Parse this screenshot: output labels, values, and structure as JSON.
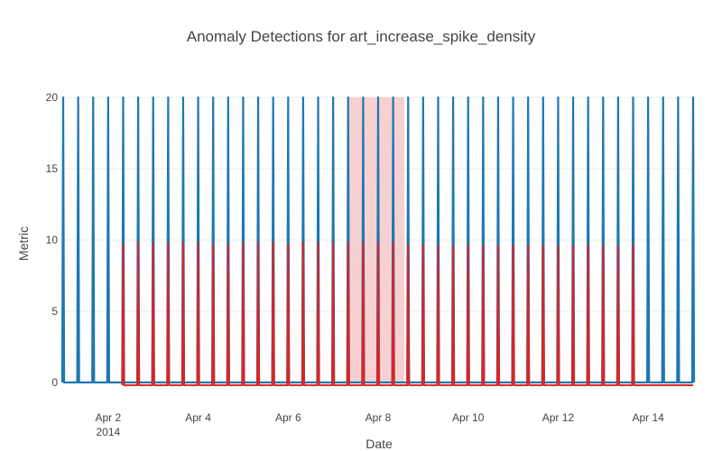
{
  "chart_data": {
    "type": "line",
    "title": "Anomaly Detections for art_increase_spike_density",
    "xlabel": "Date",
    "ylabel": "Metric",
    "ylim": [
      0,
      20
    ],
    "xlim": [
      "2014-04-01T00:00",
      "2014-04-15T00:00"
    ],
    "grid": true,
    "legend": "none",
    "x_ticks": [
      {
        "date": "2014-04-02",
        "label": "Apr 2",
        "sublabel": "2014"
      },
      {
        "date": "2014-04-04",
        "label": "Apr 4",
        "sublabel": ""
      },
      {
        "date": "2014-04-06",
        "label": "Apr 6",
        "sublabel": ""
      },
      {
        "date": "2014-04-08",
        "label": "Apr 8",
        "sublabel": ""
      },
      {
        "date": "2014-04-10",
        "label": "Apr 10",
        "sublabel": ""
      },
      {
        "date": "2014-04-12",
        "label": "Apr 12",
        "sublabel": ""
      },
      {
        "date": "2014-04-14",
        "label": "Apr 14",
        "sublabel": ""
      }
    ],
    "y_ticks": [
      {
        "value": 0,
        "label": "0"
      },
      {
        "value": 5,
        "label": "5"
      },
      {
        "value": 10,
        "label": "10"
      },
      {
        "value": 15,
        "label": "15"
      },
      {
        "value": 20,
        "label": "20"
      }
    ],
    "anomaly_window": {
      "start": "2014-04-07T08:00",
      "end": "2014-04-08T14:00",
      "color": "#f4c2c2"
    },
    "series": [
      {
        "color": "#1f77b4",
        "baseline": 0,
        "spike_value": 20,
        "spike_times": [
          "2014-04-01T00:00",
          "2014-04-01T08:00",
          "2014-04-01T16:00",
          "2014-04-02T00:00",
          "2014-04-02T08:00",
          "2014-04-02T16:00",
          "2014-04-03T00:00",
          "2014-04-03T08:00",
          "2014-04-03T16:00",
          "2014-04-04T00:00",
          "2014-04-04T08:00",
          "2014-04-04T16:00",
          "2014-04-05T00:00",
          "2014-04-05T08:00",
          "2014-04-05T16:00",
          "2014-04-06T00:00",
          "2014-04-06T08:00",
          "2014-04-06T16:00",
          "2014-04-07T00:00",
          "2014-04-07T08:00",
          "2014-04-07T16:00",
          "2014-04-08T00:00",
          "2014-04-08T08:00",
          "2014-04-08T16:00",
          "2014-04-09T00:00",
          "2014-04-09T08:00",
          "2014-04-09T16:00",
          "2014-04-10T00:00",
          "2014-04-10T08:00",
          "2014-04-10T16:00",
          "2014-04-11T00:00",
          "2014-04-11T08:00",
          "2014-04-11T16:00",
          "2014-04-12T00:00",
          "2014-04-12T08:00",
          "2014-04-12T16:00",
          "2014-04-13T00:00",
          "2014-04-13T08:00",
          "2014-04-13T16:00",
          "2014-04-14T00:00",
          "2014-04-14T08:00",
          "2014-04-14T16:00",
          "2014-04-15T00:00"
        ]
      },
      {
        "color": "#d62728",
        "baseline": -0.2,
        "start": "2014-04-02T08:00",
        "spike_values": [
          9.7,
          9.8,
          9.8,
          9.8,
          9.8,
          9.8,
          9.7,
          9.7,
          9.8,
          9.8,
          9.8,
          9.7,
          9.8,
          9.8,
          9.8,
          9.8,
          9.8,
          9.8,
          9.8,
          9.7,
          9.7,
          9.6,
          9.6,
          9.6,
          9.6,
          9.6,
          9.6,
          9.6,
          9.6,
          9.6,
          9.6,
          9.6,
          9.6,
          9.6,
          9.6
        ]
      }
    ]
  }
}
